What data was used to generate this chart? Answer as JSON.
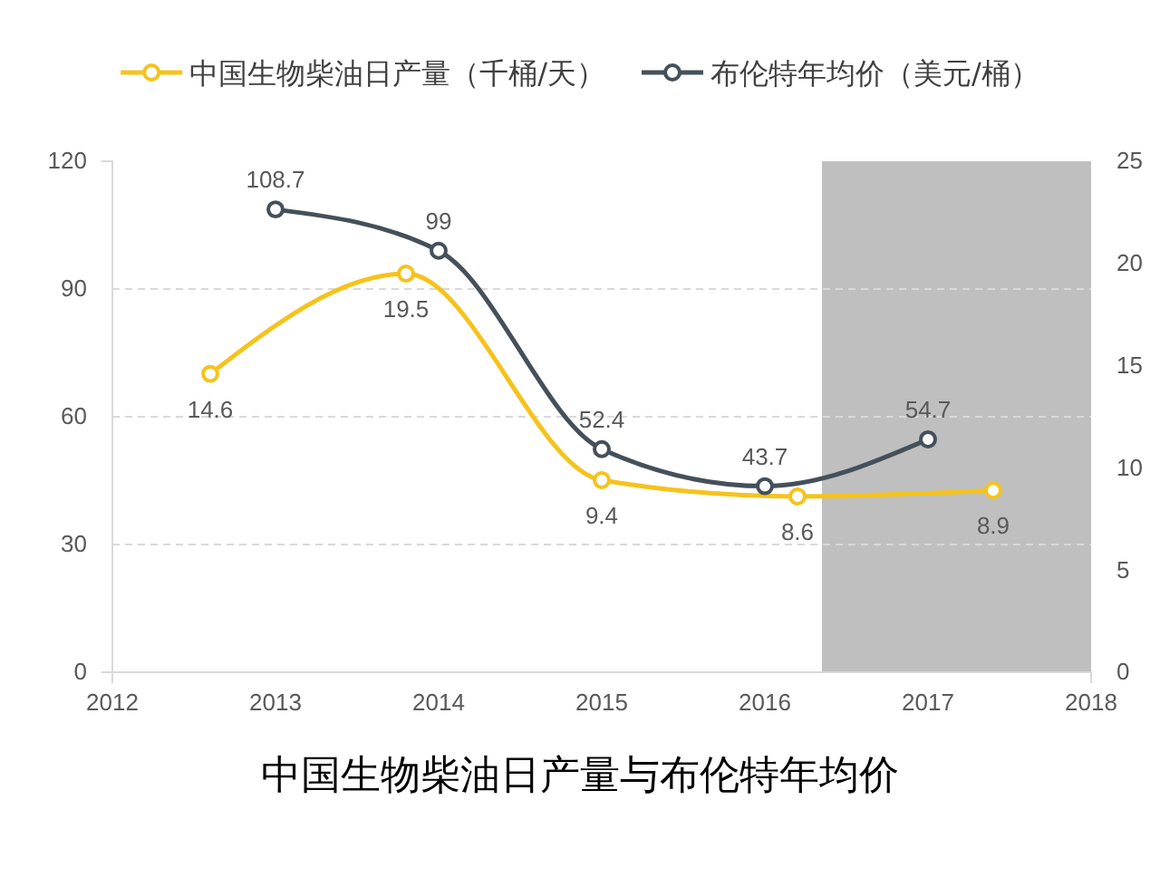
{
  "chart_data": {
    "type": "line",
    "title": "中国生物柴油日产量与布伦特年均价",
    "series": [
      {
        "name": "中国生物柴油日产量（千桶/天）",
        "color": "#f5c31c",
        "axis": "y2",
        "x": [
          2012.6,
          2013.8,
          2015,
          2016.2,
          2017.4
        ],
        "values": [
          14.6,
          19.5,
          9.4,
          8.6,
          8.9
        ]
      },
      {
        "name": "布伦特年均价（美元/桶）",
        "color": "#44505a",
        "x": [
          2013,
          2014,
          2015,
          2016,
          2017
        ],
        "values": [
          108.7,
          99,
          52.4,
          43.7,
          54.7
        ]
      }
    ],
    "xlim": [
      2012,
      2018
    ],
    "xticks": [
      2012,
      2013,
      2014,
      2015,
      2016,
      2017,
      2018
    ],
    "ylim": [
      0,
      120
    ],
    "yticks": [
      0,
      30,
      60,
      90,
      120
    ],
    "y2lim": [
      0,
      25
    ],
    "y2ticks": [
      0,
      5,
      10,
      15,
      20,
      25
    ],
    "bands": [
      {
        "axis": "x",
        "from": 2016.35,
        "to": 2018,
        "color": "#bfbfbf"
      }
    ],
    "grid": "y",
    "legend": "top",
    "marker": "circle",
    "line_style": "solid",
    "data_labels": true
  }
}
